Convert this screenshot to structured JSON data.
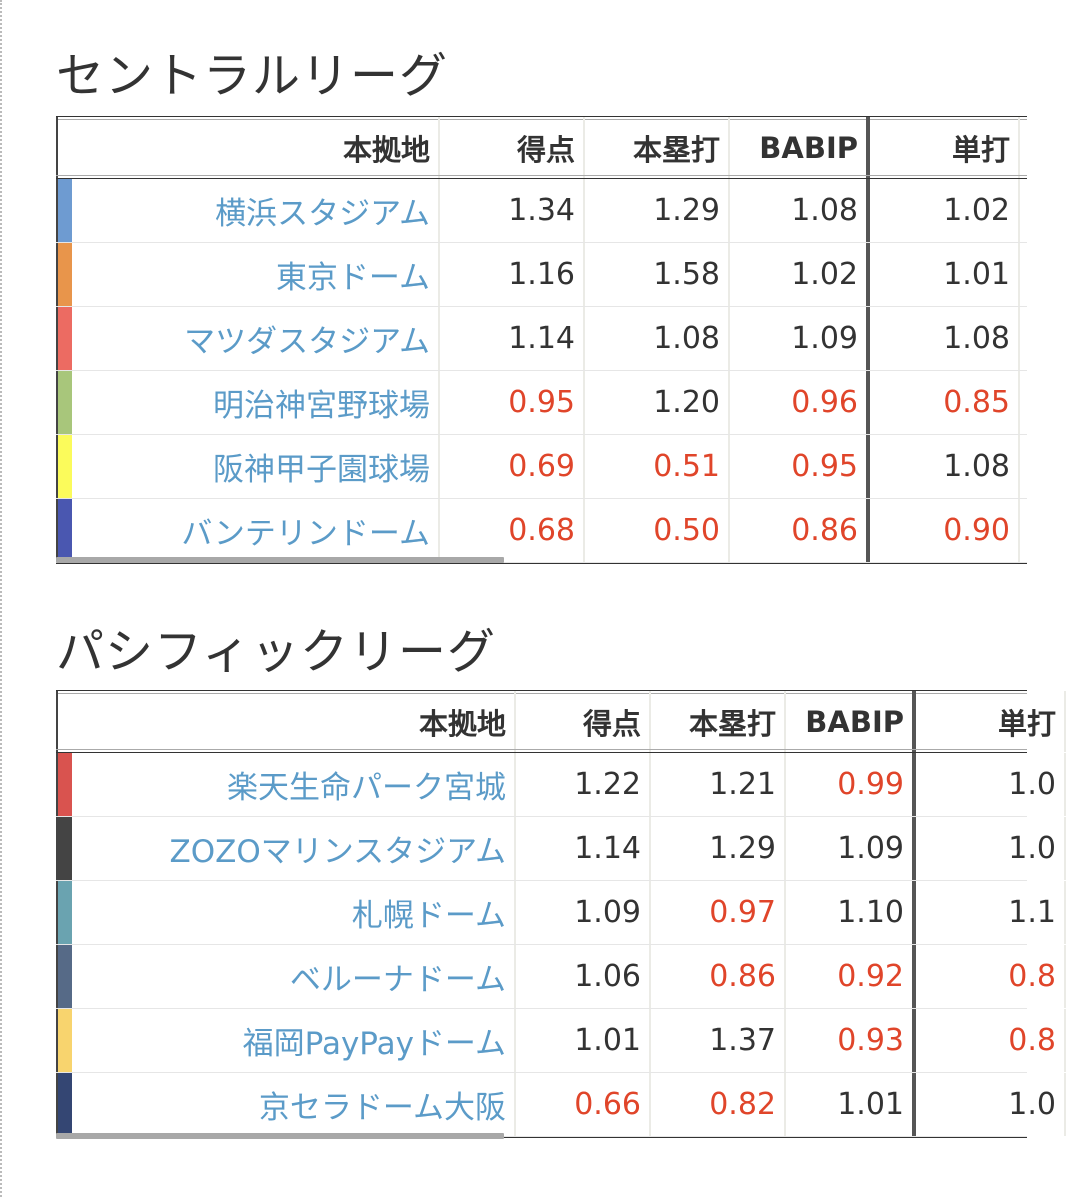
{
  "central": {
    "title": "セントラルリーグ",
    "headers": [
      "本拠地",
      "得点",
      "本塁打",
      "BABIP",
      "単打"
    ],
    "rows": [
      {
        "name": "横浜スタジアム",
        "color": "#6e9bd1",
        "values": [
          "1.34",
          "1.29",
          "1.08",
          "1.02"
        ],
        "low": [
          false,
          false,
          false,
          false
        ]
      },
      {
        "name": "東京ドーム",
        "color": "#e8954b",
        "values": [
          "1.16",
          "1.58",
          "1.02",
          "1.01"
        ],
        "low": [
          false,
          false,
          false,
          false
        ]
      },
      {
        "name": "マツダスタジアム",
        "color": "#ec6b62",
        "values": [
          "1.14",
          "1.08",
          "1.09",
          "1.08"
        ],
        "low": [
          false,
          false,
          false,
          false
        ]
      },
      {
        "name": "明治神宮野球場",
        "color": "#a8c67b",
        "values": [
          "0.95",
          "1.20",
          "0.96",
          "0.85"
        ],
        "low": [
          true,
          false,
          true,
          true
        ]
      },
      {
        "name": "阪神甲子園球場",
        "color": "#fbfb5b",
        "values": [
          "0.69",
          "0.51",
          "0.95",
          "1.08"
        ],
        "low": [
          true,
          true,
          true,
          false
        ]
      },
      {
        "name": "バンテリンドーム",
        "color": "#4a57b0",
        "values": [
          "0.68",
          "0.50",
          "0.86",
          "0.90"
        ],
        "low": [
          true,
          true,
          true,
          true
        ]
      }
    ]
  },
  "pacific": {
    "title": "パシフィックリーグ",
    "headers": [
      "本拠地",
      "得点",
      "本塁打",
      "BABIP",
      "単打"
    ],
    "rows": [
      {
        "name": "楽天生命パーク宮城",
        "color": "#d9534f",
        "values": [
          "1.22",
          "1.21",
          "0.99",
          "1.0"
        ],
        "low": [
          false,
          false,
          true,
          false
        ]
      },
      {
        "name": "ZOZOマリンスタジアム",
        "color": "#444444",
        "values": [
          "1.14",
          "1.29",
          "1.09",
          "1.0"
        ],
        "low": [
          false,
          false,
          false,
          false
        ]
      },
      {
        "name": "札幌ドーム",
        "color": "#6aa3b0",
        "values": [
          "1.09",
          "0.97",
          "1.10",
          "1.1"
        ],
        "low": [
          false,
          true,
          false,
          false
        ]
      },
      {
        "name": "ベルーナドーム",
        "color": "#566a87",
        "values": [
          "1.06",
          "0.86",
          "0.92",
          "0.8"
        ],
        "low": [
          false,
          true,
          true,
          true
        ]
      },
      {
        "name": "福岡PayPayドーム",
        "color": "#f8d46e",
        "values": [
          "1.01",
          "1.37",
          "0.93",
          "0.8"
        ],
        "low": [
          false,
          false,
          true,
          true
        ]
      },
      {
        "name": "京セラドーム大阪",
        "color": "#344673",
        "values": [
          "0.66",
          "0.82",
          "1.01",
          "1.0"
        ],
        "low": [
          true,
          true,
          false,
          false
        ]
      }
    ]
  }
}
